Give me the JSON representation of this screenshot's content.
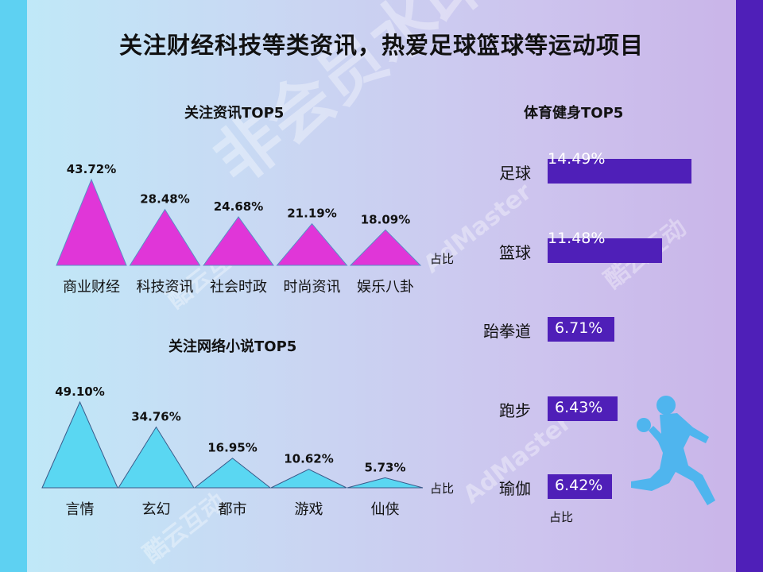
{
  "title": "关注财经科技等类资讯，热爱足球篮球等运动项目",
  "watermarks": [
    "非会员水印",
    "AdMaster",
    "酷云互动"
  ],
  "charts": [
    {
      "heading": "关注资讯TOP5",
      "unit": "占比"
    },
    {
      "heading": "关注网络小说TOP5",
      "unit": "占比"
    },
    {
      "heading": "体育健身TOP5",
      "unit": "占比"
    }
  ],
  "chart_data": [
    {
      "type": "bar",
      "title": "关注资讯TOP5",
      "categories": [
        "商业财经",
        "科技资讯",
        "社会时政",
        "时尚资讯",
        "娱乐八卦"
      ],
      "values": [
        43.72,
        28.48,
        24.68,
        21.19,
        18.09
      ],
      "value_labels": [
        "43.72%",
        "28.48%",
        "24.68%",
        "21.19%",
        "18.09%"
      ],
      "ylabel": "占比",
      "color": "#e036d8"
    },
    {
      "type": "bar",
      "title": "关注网络小说TOP5",
      "categories": [
        "言情",
        "玄幻",
        "都市",
        "游戏",
        "仙侠"
      ],
      "values": [
        49.1,
        34.76,
        16.95,
        10.62,
        5.73
      ],
      "value_labels": [
        "49.10%",
        "34.76%",
        "16.95%",
        "10.62%",
        "5.73%"
      ],
      "ylabel": "占比",
      "color": "#5ad7f2"
    },
    {
      "type": "bar",
      "title": "体育健身TOP5",
      "categories": [
        "足球",
        "篮球",
        "跆拳道",
        "跑步",
        "瑜伽"
      ],
      "values": [
        14.49,
        11.48,
        6.71,
        6.43,
        6.42
      ],
      "value_labels": [
        "14.49%",
        "11.48%",
        "6.71%",
        "6.43%",
        "6.42%"
      ],
      "ylabel": "占比",
      "color": "#4f1fb8"
    }
  ]
}
